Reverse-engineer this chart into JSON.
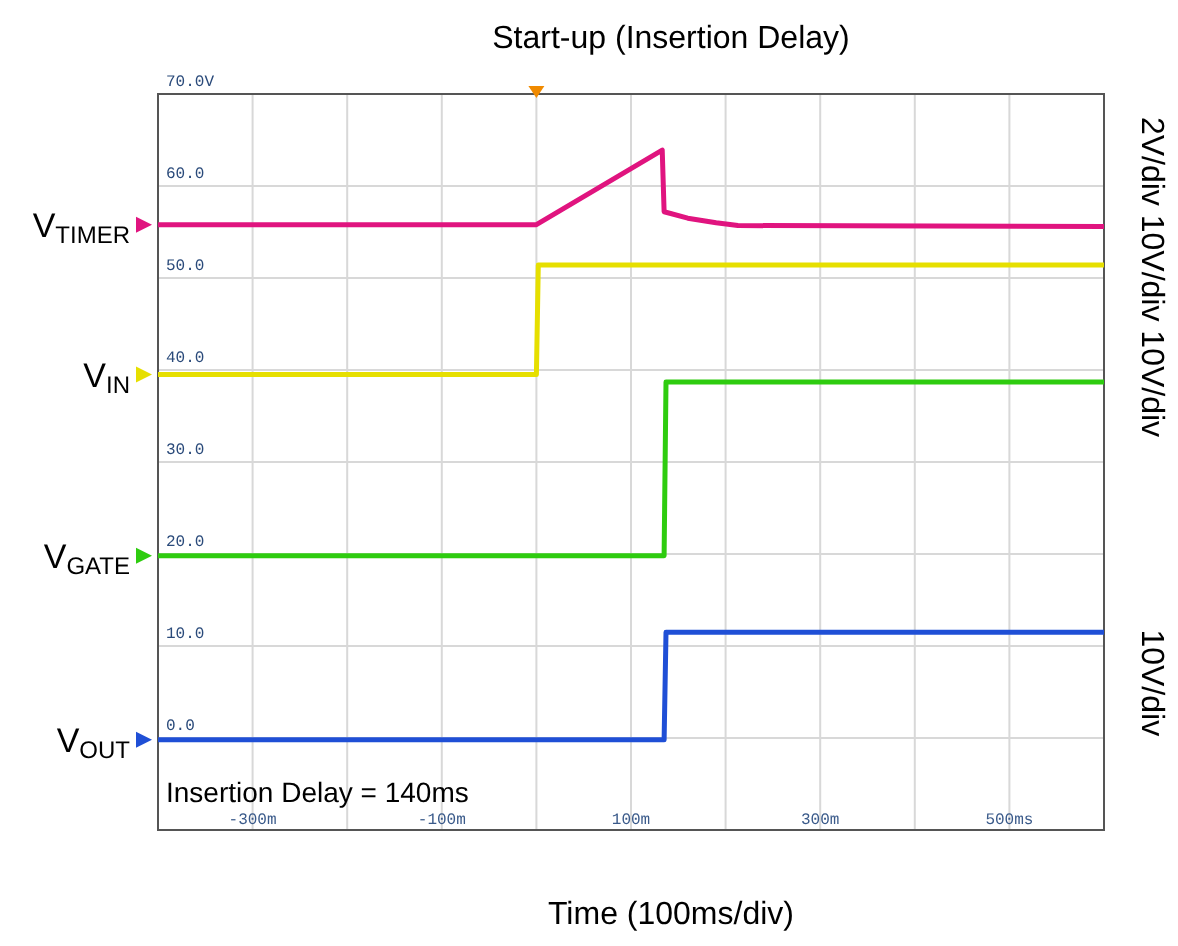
{
  "chart_data": {
    "type": "line",
    "title": "Start-up (Insertion Delay)",
    "xlabel": "Time (100ms/div)",
    "xlim": [
      -400,
      600
    ],
    "xticks": [
      {
        "value": -300,
        "label": "-300m"
      },
      {
        "value": -200,
        "label": null
      },
      {
        "value": -100,
        "label": "-100m"
      },
      {
        "value": 0,
        "label": null
      },
      {
        "value": 100,
        "label": "100m"
      },
      {
        "value": 200,
        "label": null
      },
      {
        "value": 300,
        "label": "300m"
      },
      {
        "value": 400,
        "label": null
      },
      {
        "value": 500,
        "label": "500ms"
      }
    ],
    "ylim": [
      -10,
      70
    ],
    "yticks": [
      {
        "value": 0,
        "label": "0.0"
      },
      {
        "value": 10,
        "label": "10.0"
      },
      {
        "value": 20,
        "label": "20.0"
      },
      {
        "value": 30,
        "label": "30.0"
      },
      {
        "value": 40,
        "label": "40.0"
      },
      {
        "value": 50,
        "label": "50.0"
      },
      {
        "value": 60,
        "label": "60.0"
      },
      {
        "value": 70,
        "label": "70.0V"
      }
    ],
    "grid": true,
    "legend": "left",
    "marker": "none",
    "line_style": "solid",
    "series": [
      {
        "name": "V$_{TIMER}$",
        "color": "#e0147f",
        "x": [
          -400,
          0,
          133,
          135,
          160,
          190,
          213,
          600
        ],
        "values": [
          55.8,
          55.8,
          63.9,
          57.2,
          56.5,
          56,
          55.7,
          55.6
        ]
      },
      {
        "name": "V$_{IN}$",
        "color": "#e6df00",
        "x": [
          -400,
          0,
          2,
          600
        ],
        "values": [
          39.5,
          39.5,
          51.4,
          51.4
        ]
      },
      {
        "name": "V$_{GATE}$",
        "color": "#2ecc0f",
        "x": [
          -400,
          135,
          137,
          600
        ],
        "values": [
          19.8,
          19.8,
          38.7,
          38.7
        ]
      },
      {
        "name": "V$_{OUT}$",
        "color": "#1f4fd6",
        "x": [
          -400,
          135,
          137,
          600
        ],
        "values": [
          -0.2,
          -0.2,
          11.5,
          11.5
        ]
      }
    ],
    "annotations": [
      "Insertion Delay = 140ms",
      "2V/div 10V/div 10V/div",
      "10V/div"
    ]
  }
}
